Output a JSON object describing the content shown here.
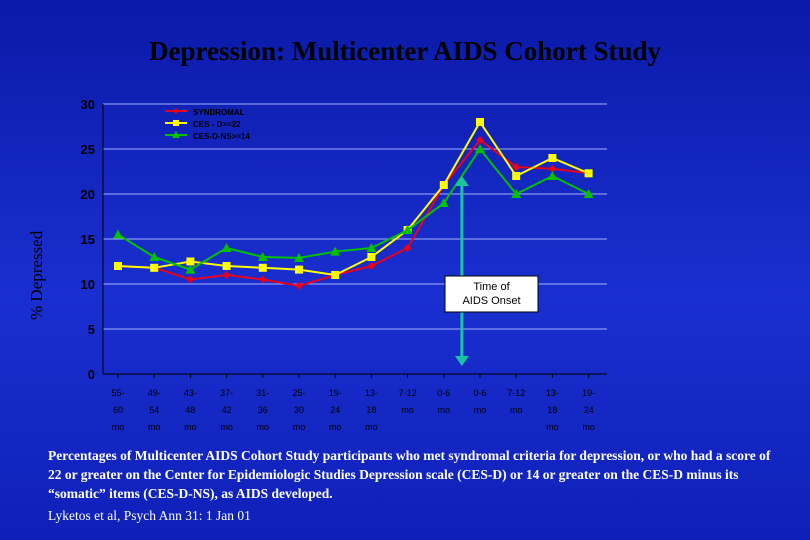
{
  "slide": {
    "title": "Depression:  Multicenter AIDS Cohort Study",
    "caption": "Percentages of Multicenter AIDS Cohort Study participants who met syndromal criteria for depression, or who had a score of 22 or greater on the Center for Epidemiologic Studies Depression scale (CES-D) or 14 or greater on the CES-D minus its “somatic” items (CES-D-NS), as AIDS developed.",
    "citation": "Lyketos et al, Psych Ann 31: 1 Jan 01"
  },
  "chart_data": {
    "type": "line",
    "title": "",
    "ylabel": "% Depressed",
    "xlabel": "",
    "ylim": [
      0,
      30
    ],
    "yticks": [
      0,
      5,
      10,
      15,
      20,
      25,
      30
    ],
    "grid": true,
    "legend_position": "top-center",
    "categories": [
      [
        "55-",
        "60",
        "mo"
      ],
      [
        "49-",
        "54",
        "mo"
      ],
      [
        "43-",
        "48",
        "mo"
      ],
      [
        "37-",
        "42",
        "mo"
      ],
      [
        "31-",
        "36",
        "mo"
      ],
      [
        "25-",
        "30",
        "mo"
      ],
      [
        "19-",
        "24",
        "mo"
      ],
      [
        "13-",
        "18",
        "mo"
      ],
      [
        "7-12",
        "mo"
      ],
      [
        "0-6",
        "mo"
      ],
      [
        "0-6",
        "mo"
      ],
      [
        "7-12",
        "mo"
      ],
      [
        "13-",
        "18",
        "mo"
      ],
      [
        "19-",
        "24",
        "mo"
      ]
    ],
    "series": [
      {
        "name": "SYNDROMAL",
        "color": "#e8001c",
        "marker": "diamond",
        "values": [
          12,
          11.8,
          10.5,
          11,
          10.5,
          9.8,
          11,
          12,
          14,
          21,
          26,
          23,
          22.8,
          22.3
        ]
      },
      {
        "name": "CES - D>=22",
        "color": "#ffff00",
        "marker": "square",
        "values": [
          12,
          11.8,
          12.5,
          12,
          11.8,
          11.6,
          11,
          13,
          16,
          21,
          28,
          22,
          24,
          22.3
        ]
      },
      {
        "name": "CES-D-NS>=14",
        "color": "#00c000",
        "marker": "triangle",
        "values": [
          15.5,
          13,
          11.6,
          14,
          13,
          12.9,
          13.6,
          14,
          16,
          19,
          25,
          20,
          22,
          20
        ]
      }
    ],
    "annotation": {
      "text": [
        "Time of",
        "AIDS Onset"
      ],
      "between_categories": [
        9,
        10
      ]
    }
  }
}
